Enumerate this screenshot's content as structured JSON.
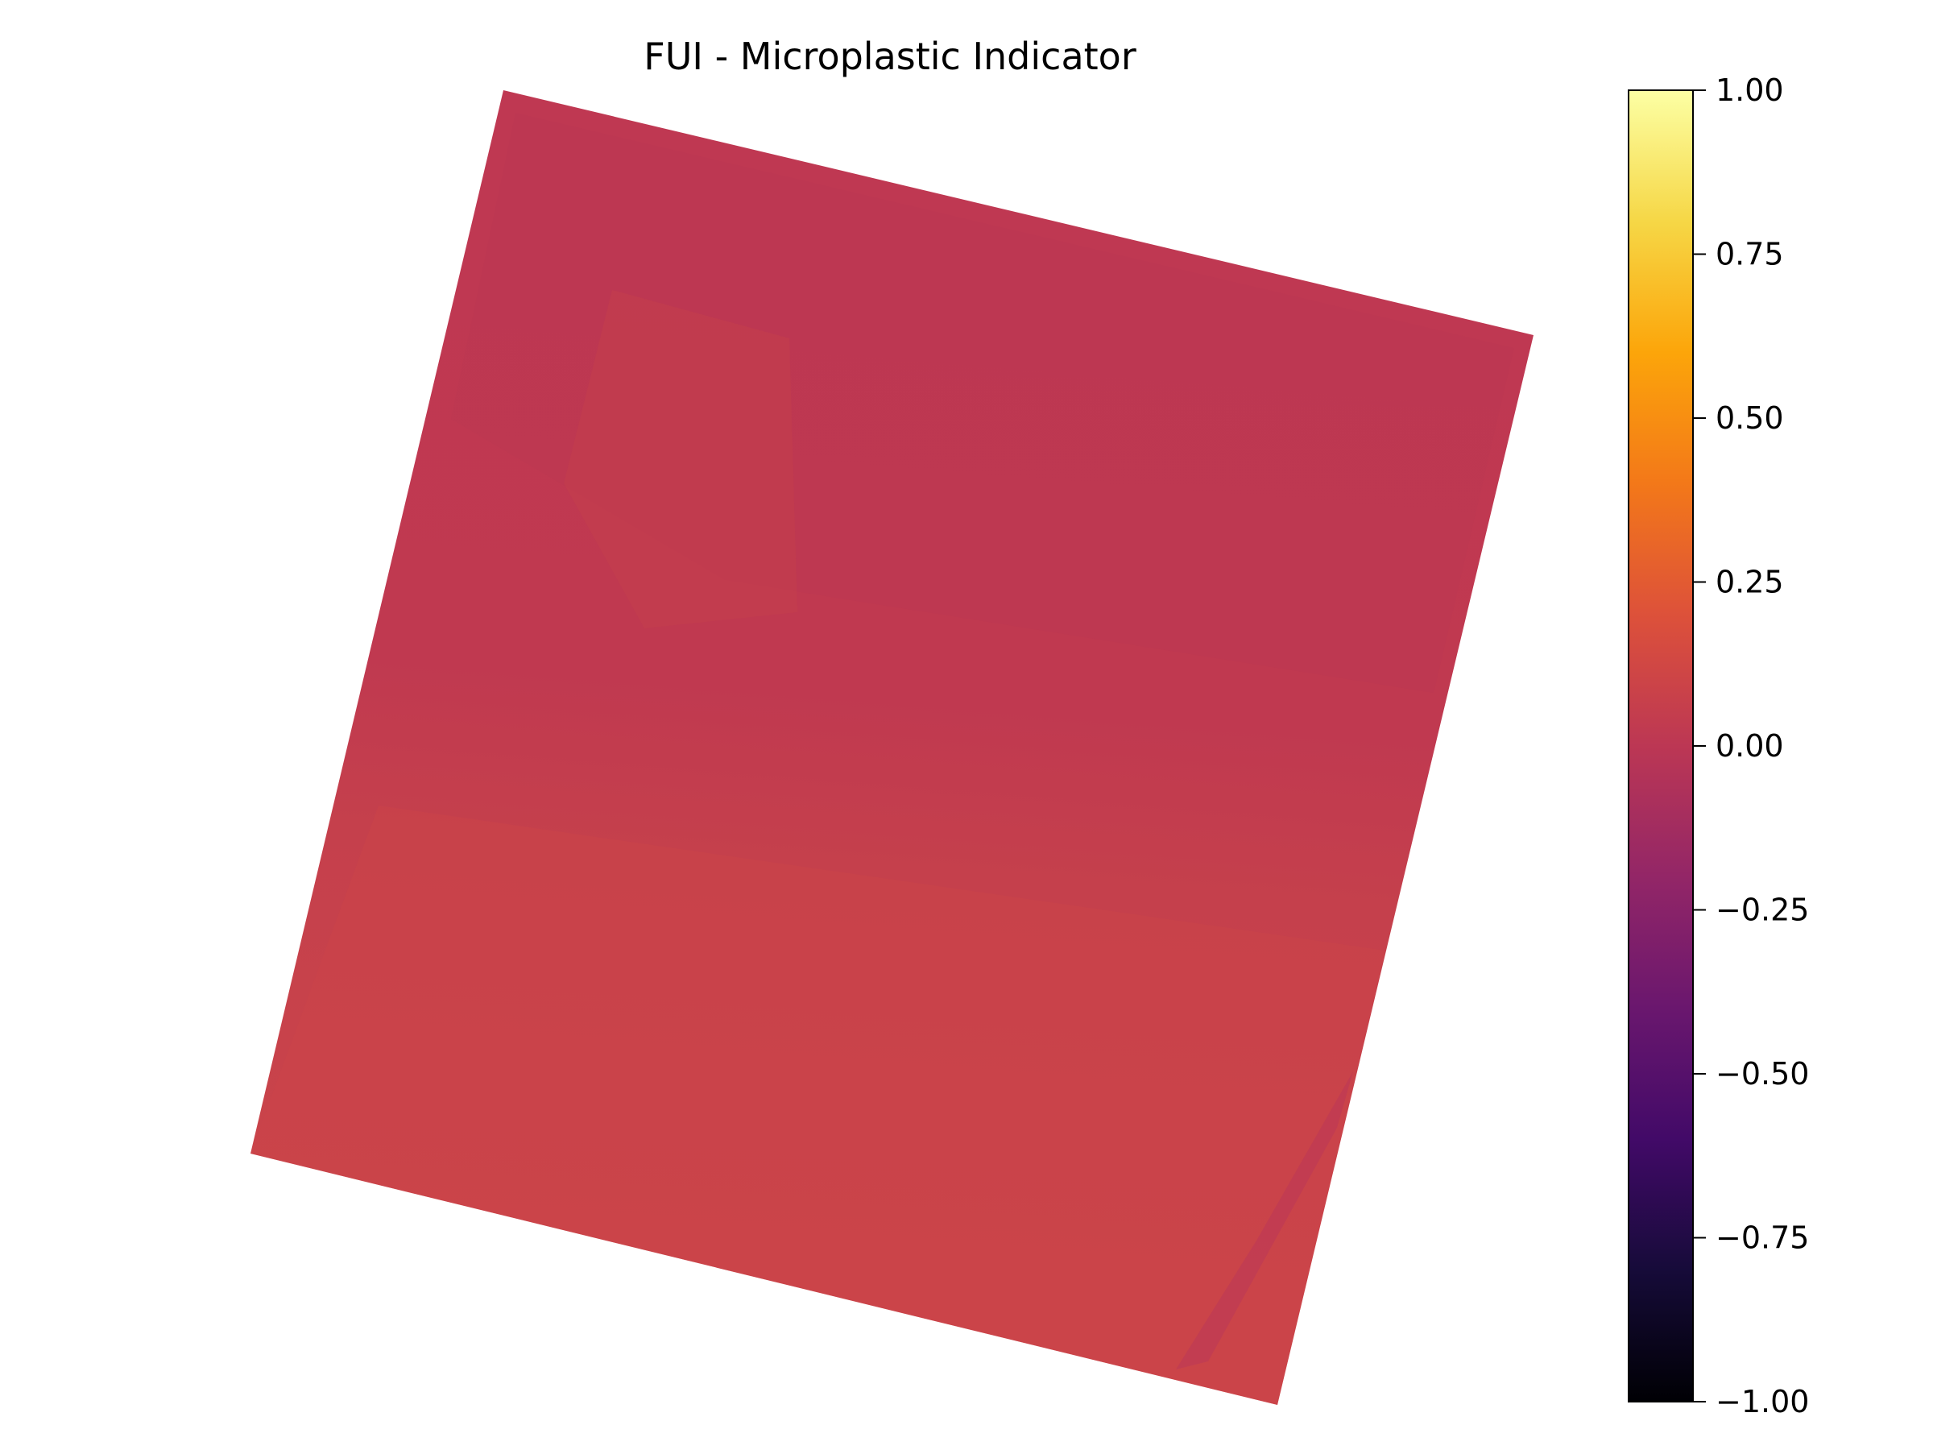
{
  "chart_data": {
    "type": "heatmap",
    "title": "FUI - Microplastic Indicator",
    "colormap": "inferno",
    "value_range": [
      -1.0,
      1.0
    ],
    "field_value_range_estimate": [
      -0.08,
      0.12
    ],
    "field_description": "rotated raster tile; values near 0.00 to 0.10, slightly lower (≈0.0) in the upper part, slightly higher (≈0.08–0.10) in the lower part",
    "colorbar": {
      "ticks": [
        1.0,
        0.75,
        0.5,
        0.25,
        0.0,
        -0.25,
        -0.5,
        -0.75,
        -1.0
      ],
      "tick_labels": [
        "1.00",
        "0.75",
        "0.50",
        "0.25",
        "0.00",
        "−0.25",
        "−0.50",
        "−0.75",
        "−1.00"
      ]
    },
    "colors": {
      "upper_region": "#bf3852",
      "lower_region": "#c9434a",
      "mid_region": "#c43c4e"
    }
  }
}
